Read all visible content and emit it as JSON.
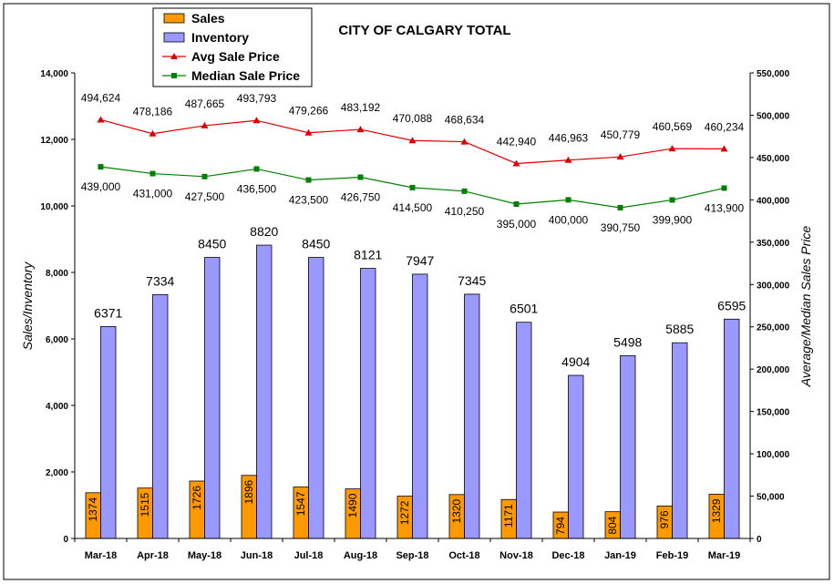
{
  "chart_data": {
    "type": "bar",
    "title": "CITY OF CALGARY TOTAL",
    "categories": [
      "Mar-18",
      "Apr-18",
      "May-18",
      "Jun-18",
      "Jul-18",
      "Aug-18",
      "Sep-18",
      "Oct-18",
      "Nov-18",
      "Dec-18",
      "Jan-19",
      "Feb-19",
      "Mar-19"
    ],
    "ylabel": "Sales/Inventory",
    "y2label": "Average/Median Sales Price",
    "ylim": [
      0,
      14000
    ],
    "y2lim": [
      0,
      550000
    ],
    "yticks": [
      "0",
      "2,000",
      "4,000",
      "6,000",
      "8,000",
      "10,000",
      "12,000",
      "14,000"
    ],
    "y2ticks": [
      "0",
      "50,000",
      "100,000",
      "150,000",
      "200,000",
      "250,000",
      "300,000",
      "350,000",
      "400,000",
      "450,000",
      "500,000",
      "550,000"
    ],
    "legend_position": "top-left",
    "series": [
      {
        "name": "Sales",
        "kind": "bar",
        "axis": "left",
        "color": "#ff9900",
        "values": [
          1374,
          1515,
          1726,
          1896,
          1547,
          1490,
          1272,
          1320,
          1171,
          794,
          804,
          976,
          1329
        ],
        "labels": [
          "1374",
          "1515",
          "1726",
          "1896",
          "1547",
          "1490",
          "1272",
          "1320",
          "1171",
          "794",
          "804",
          "976",
          "1329"
        ]
      },
      {
        "name": "Inventory",
        "kind": "bar",
        "axis": "left",
        "color": "#9999ff",
        "values": [
          6371,
          7334,
          8450,
          8820,
          8450,
          8121,
          7947,
          7345,
          6501,
          4904,
          5498,
          5885,
          6595
        ],
        "labels": [
          "6371",
          "7334",
          "8450",
          "8820",
          "8450",
          "8121",
          "7947",
          "7345",
          "6501",
          "4904",
          "5498",
          "5885",
          "6595"
        ]
      },
      {
        "name": "Avg Sale Price",
        "kind": "line",
        "axis": "right",
        "color": "#dd0000",
        "marker": "triangle",
        "values": [
          494624,
          478186,
          487665,
          493793,
          479266,
          483192,
          470088,
          468634,
          442940,
          446963,
          450779,
          460569,
          460234
        ],
        "labels": [
          "494,624",
          "478,186",
          "487,665",
          "493,793",
          "479,266",
          "483,192",
          "470,088",
          "468,634",
          "442,940",
          "446,963",
          "450,779",
          "460,569",
          "460,234"
        ]
      },
      {
        "name": "Median Sale Price",
        "kind": "line",
        "axis": "right",
        "color": "#008000",
        "marker": "square",
        "values": [
          439000,
          431000,
          427500,
          436500,
          423500,
          426750,
          414500,
          410250,
          395000,
          400000,
          390750,
          399900,
          413900
        ],
        "labels": [
          "439,000",
          "431,000",
          "427,500",
          "436,500",
          "423,500",
          "426,750",
          "414,500",
          "410,250",
          "395,000",
          "400,000",
          "390,750",
          "399,900",
          "413,900"
        ]
      }
    ]
  }
}
